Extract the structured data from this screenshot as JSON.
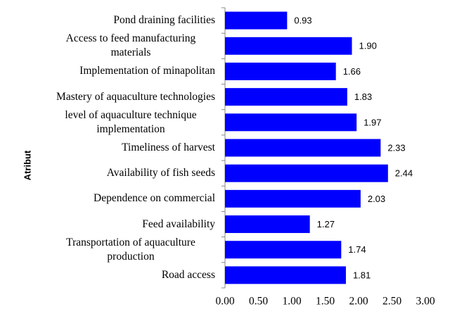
{
  "chart_data": {
    "type": "barh",
    "ylabel": "Atribut",
    "categories": [
      "Pond draining facilities",
      "Access to feed manufacturing materials",
      "Implementation of minapolitan",
      "Mastery of aquaculture technologies",
      "level of aquaculture technique implementation",
      "Timeliness of harvest",
      "Availability of fish seeds",
      "Dependence on commercial",
      "Feed availability",
      "Transportation of aquaculture production",
      "Road access"
    ],
    "values": [
      0.93,
      1.9,
      1.66,
      1.83,
      1.97,
      2.33,
      2.44,
      2.03,
      1.27,
      1.74,
      1.81
    ],
    "value_labels": [
      "0.93",
      "1.90",
      "1.66",
      "1.83",
      "1.97",
      "2.33",
      "2.44",
      "2.03",
      "1.27",
      "1.74",
      "1.81"
    ],
    "color": "#0000ff",
    "xlim": [
      0,
      3
    ],
    "xticks": [
      {
        "value": 0,
        "label": "0.00"
      },
      {
        "value": 0.5,
        "label": "0.50"
      },
      {
        "value": 1,
        "label": "1.00"
      },
      {
        "value": 1.5,
        "label": "1.50"
      },
      {
        "value": 2,
        "label": "2.00"
      },
      {
        "value": 2.5,
        "label": "2.50"
      },
      {
        "value": 3,
        "label": "3.00"
      }
    ],
    "grid": false
  }
}
